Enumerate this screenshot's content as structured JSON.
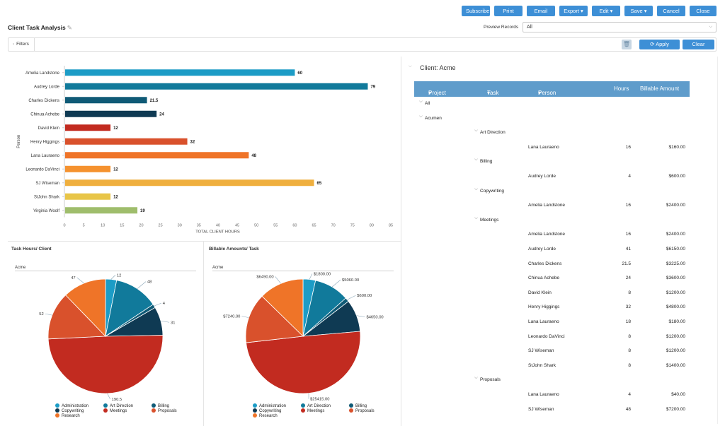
{
  "toolbar": {
    "buttons": [
      "Subscribe",
      "Print",
      "Email",
      "Export ▾",
      "Edit ▾",
      "Save ▾",
      "Cancel",
      "Close"
    ]
  },
  "page_title": "Client Task Analysis",
  "preview": {
    "label": "Preview Records",
    "value": "All"
  },
  "filters": {
    "label": "Filters",
    "apply": "Apply Filter",
    "clear": "Clear Filter"
  },
  "colors": {
    "administration": "#1c9cc6",
    "art_direction": "#117a9b",
    "billing": "#0f5a76",
    "copywriting": "#0f3a53",
    "meetings": "#c22b20",
    "proposals": "#d9512c",
    "research": "#ef7428",
    "orange_light": "#f5922f",
    "yellow": "#efaf3e",
    "yellow2": "#e8c548",
    "green": "#9fbd6c",
    "accent": "#3d8fd6",
    "header_blue": "#5f9ccb"
  },
  "chart_data": [
    {
      "type": "bar",
      "orientation": "horizontal",
      "categories": [
        "Amelia Landstone",
        "Audrey Lorde",
        "Charles Dickens",
        "Chinua Achebe",
        "David Klein",
        "Henry Higgings",
        "Lana Lauraeno",
        "Leonardo DaVinci",
        "SJ Wiseman",
        "StJohn Shark",
        "Virginia Woolf"
      ],
      "values": [
        60,
        79,
        21.5,
        24,
        12,
        32,
        48,
        12,
        65,
        12,
        19
      ],
      "data_labels": [
        "60",
        "79",
        "21.5",
        "24",
        "12",
        "32",
        "48",
        "12",
        "65",
        "12",
        "19"
      ],
      "bar_colors": [
        "#1c9cc6",
        "#117a9b",
        "#0f5a76",
        "#0f3a53",
        "#c22b20",
        "#d9512c",
        "#ef7428",
        "#f5922f",
        "#efaf3e",
        "#e8c548",
        "#9fbd6c"
      ],
      "xlabel": "TOTAL CLIENT HOURS",
      "ylabel": "Person",
      "xlim": [
        0,
        85
      ],
      "xticks": [
        0,
        5,
        10,
        15,
        20,
        25,
        30,
        35,
        40,
        45,
        50,
        55,
        60,
        65,
        70,
        75,
        80,
        85
      ]
    },
    {
      "type": "pie",
      "title": "Task Hours/ Client",
      "subtitle": "Acme",
      "slices": [
        {
          "name": "Administration",
          "value": 12,
          "label": "12",
          "color": "#1c9cc6"
        },
        {
          "name": "Art Direction",
          "value": 48,
          "label": "48",
          "color": "#117a9b"
        },
        {
          "name": "Billing",
          "value": 4,
          "label": "4",
          "color": "#0f5a76"
        },
        {
          "name": "Copywriting",
          "value": 31,
          "label": "31",
          "color": "#0f3a53"
        },
        {
          "name": "Meetings",
          "value": 190.5,
          "label": "190.5",
          "color": "#c22b20"
        },
        {
          "name": "Proposals",
          "value": 52,
          "label": "52",
          "color": "#d9512c"
        },
        {
          "name": "Research",
          "value": 47,
          "label": "47",
          "color": "#ef7428"
        }
      ]
    },
    {
      "type": "pie",
      "title": "Billable Amounts/ Task",
      "subtitle": "Acme",
      "slices": [
        {
          "name": "Administration",
          "value": 1800,
          "label": "$1800.00",
          "color": "#1c9cc6"
        },
        {
          "name": "Art Direction",
          "value": 5060,
          "label": "$5060.00",
          "color": "#117a9b"
        },
        {
          "name": "Billing",
          "value": 600,
          "label": "$600.00",
          "color": "#0f5a76"
        },
        {
          "name": "Copywriting",
          "value": 4650,
          "label": "$4650.00",
          "color": "#0f3a53"
        },
        {
          "name": "Meetings",
          "value": 25415,
          "label": "$25415.00",
          "color": "#c22b20"
        },
        {
          "name": "Proposals",
          "value": 7240,
          "label": "$7240.00",
          "color": "#d9512c"
        },
        {
          "name": "Research",
          "value": 6490,
          "label": "$6490.00",
          "color": "#ef7428"
        }
      ]
    }
  ],
  "legend": [
    "Administration",
    "Art Direction",
    "Billing",
    "Copywriting",
    "Meetings",
    "Proposals",
    "Research"
  ],
  "table": {
    "client_title": "Client: Acme",
    "headers": [
      "Project",
      "Task",
      "Person",
      "Hours",
      "Billable Amount"
    ],
    "rows": [
      {
        "kind": "group1",
        "label": "All"
      },
      {
        "kind": "group1",
        "label": "Acumen"
      },
      {
        "kind": "group2",
        "label": "Art Direction"
      },
      {
        "kind": "data",
        "person": "Lana Lauraeno",
        "hours": "16",
        "amount": "$160.00"
      },
      {
        "kind": "group2",
        "label": "Billing"
      },
      {
        "kind": "data",
        "person": "Audrey Lorde",
        "hours": "4",
        "amount": "$600.00"
      },
      {
        "kind": "group2",
        "label": "Copywriting"
      },
      {
        "kind": "data",
        "person": "Amelia Landstone",
        "hours": "16",
        "amount": "$2400.00"
      },
      {
        "kind": "group2",
        "label": "Meetings"
      },
      {
        "kind": "data",
        "person": "Amelia Landstone",
        "hours": "16",
        "amount": "$2400.00"
      },
      {
        "kind": "data",
        "person": "Audrey Lorde",
        "hours": "41",
        "amount": "$6150.00"
      },
      {
        "kind": "data",
        "person": "Charles Dickens",
        "hours": "21.5",
        "amount": "$3225.00"
      },
      {
        "kind": "data",
        "person": "Chinua Achebe",
        "hours": "24",
        "amount": "$3600.00"
      },
      {
        "kind": "data",
        "person": "David Klein",
        "hours": "8",
        "amount": "$1200.00"
      },
      {
        "kind": "data",
        "person": "Henry Higgings",
        "hours": "32",
        "amount": "$4800.00"
      },
      {
        "kind": "data",
        "person": "Lana Lauraeno",
        "hours": "18",
        "amount": "$180.00"
      },
      {
        "kind": "data",
        "person": "Leonardo DaVinci",
        "hours": "8",
        "amount": "$1200.00"
      },
      {
        "kind": "data",
        "person": "SJ Wiseman",
        "hours": "8",
        "amount": "$1200.00"
      },
      {
        "kind": "data",
        "person": "StJohn Shark",
        "hours": "8",
        "amount": "$1400.00"
      },
      {
        "kind": "group2",
        "label": "Proposals"
      },
      {
        "kind": "data",
        "person": "Lana Lauraeno",
        "hours": "4",
        "amount": "$40.00"
      },
      {
        "kind": "data",
        "person": "SJ Wiseman",
        "hours": "48",
        "amount": "$7200.00"
      }
    ]
  }
}
